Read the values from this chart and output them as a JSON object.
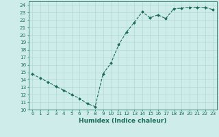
{
  "x": [
    0,
    1,
    2,
    3,
    4,
    5,
    6,
    7,
    8,
    9,
    10,
    11,
    12,
    13,
    14,
    15,
    16,
    17,
    18,
    19,
    20,
    21,
    22,
    23
  ],
  "y": [
    14.8,
    14.2,
    13.7,
    13.1,
    12.6,
    12.0,
    11.5,
    10.8,
    10.4,
    14.8,
    16.2,
    18.7,
    20.4,
    21.7,
    23.1,
    22.3,
    22.7,
    22.2,
    23.5,
    23.6,
    23.7,
    23.7,
    23.7,
    23.4
  ],
  "line_color": "#1a6b5a",
  "marker": "D",
  "marker_size": 2.0,
  "bg_color": "#cdecea",
  "grid_color": "#aad4d0",
  "xlabel": "Humidex (Indice chaleur)",
  "xlim": [
    -0.5,
    23.5
  ],
  "ylim": [
    10,
    24.5
  ],
  "yticks": [
    10,
    11,
    12,
    13,
    14,
    15,
    16,
    17,
    18,
    19,
    20,
    21,
    22,
    23,
    24
  ],
  "xticks": [
    0,
    1,
    2,
    3,
    4,
    5,
    6,
    7,
    8,
    9,
    10,
    11,
    12,
    13,
    14,
    15,
    16,
    17,
    18,
    19,
    20,
    21,
    22,
    23
  ],
  "tick_fontsize": 5.2,
  "label_fontsize": 6.5,
  "tick_color": "#1a6b5a",
  "axis_color": "#1a6b5a",
  "linewidth": 0.8
}
